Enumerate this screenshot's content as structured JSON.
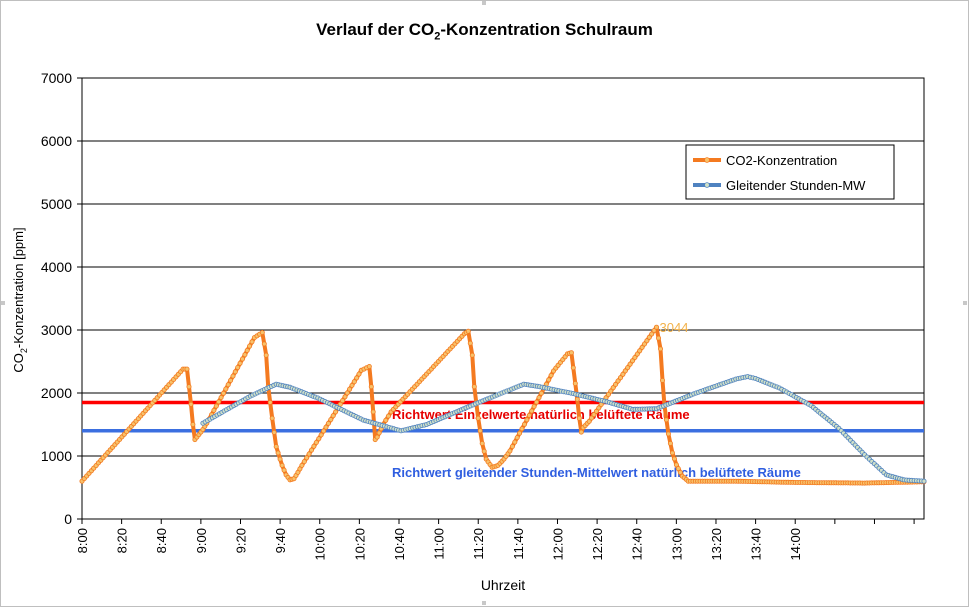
{
  "chart_data": {
    "type": "line",
    "title_parts": {
      "before": "Verlauf der CO",
      "sub": "2",
      "after": "-Konzentration Schulraum"
    },
    "ylabel_parts": {
      "before": "CO",
      "sub": "2",
      "after": "-Konzentration [ppm]"
    },
    "xlabel": "Uhrzeit",
    "ylim": [
      0,
      7000
    ],
    "yticks": [
      0,
      1000,
      2000,
      3000,
      4000,
      5000,
      6000,
      7000
    ],
    "xlim_min": [
      480,
      905
    ],
    "xtick_labels": [
      "8:00",
      "8:20",
      "8:40",
      "9:00",
      "9:20",
      "9:40",
      "10:00",
      "10:20",
      "10:40",
      "11:00",
      "11:20",
      "11:40",
      "12:00",
      "12:20",
      "12:40",
      "13:00",
      "13:20",
      "13:40",
      "14:00",
      "",
      "",
      ""
    ],
    "grid": "horizontal",
    "legend_position": "top-right",
    "series": [
      {
        "name": "CO2-Konzentration",
        "color": "#f47a20",
        "marker_color": "#f7c26b",
        "points": [
          [
            480,
            600
          ],
          [
            531,
            2380
          ],
          [
            533,
            2380
          ],
          [
            535,
            1820
          ],
          [
            536,
            1500
          ],
          [
            537,
            1260
          ],
          [
            538,
            1300
          ],
          [
            541,
            1420
          ],
          [
            543,
            1520
          ],
          [
            567,
            2880
          ],
          [
            571,
            2960
          ],
          [
            573,
            2600
          ],
          [
            574,
            2100
          ],
          [
            576,
            1600
          ],
          [
            578,
            1150
          ],
          [
            581,
            850
          ],
          [
            583,
            700
          ],
          [
            585,
            620
          ],
          [
            587,
            640
          ],
          [
            589,
            740
          ],
          [
            591,
            850
          ],
          [
            608,
            1700
          ],
          [
            621,
            2360
          ],
          [
            625,
            2420
          ],
          [
            626,
            2100
          ],
          [
            627,
            1700
          ],
          [
            628,
            1260
          ],
          [
            629,
            1300
          ],
          [
            632,
            1500
          ],
          [
            636,
            1700
          ],
          [
            673,
            2940
          ],
          [
            675,
            2980
          ],
          [
            677,
            2600
          ],
          [
            678,
            2100
          ],
          [
            680,
            1600
          ],
          [
            682,
            1200
          ],
          [
            684,
            950
          ],
          [
            687,
            820
          ],
          [
            690,
            850
          ],
          [
            693,
            950
          ],
          [
            696,
            1080
          ],
          [
            718,
            2350
          ],
          [
            725,
            2620
          ],
          [
            727,
            2640
          ],
          [
            728,
            2400
          ],
          [
            730,
            1900
          ],
          [
            731,
            1600
          ],
          [
            732,
            1380
          ],
          [
            733,
            1450
          ],
          [
            736,
            1550
          ],
          [
            770,
            3044
          ],
          [
            772,
            2700
          ],
          [
            773,
            2200
          ],
          [
            774,
            1800
          ],
          [
            776,
            1350
          ],
          [
            778,
            1050
          ],
          [
            780,
            860
          ],
          [
            783,
            680
          ],
          [
            786,
            600
          ],
          [
            810,
            600
          ],
          [
            840,
            580
          ],
          [
            875,
            570
          ],
          [
            905,
            590
          ]
        ]
      },
      {
        "name": "Gleitender Stunden-MW",
        "color": "#4f82c0",
        "marker_color": "#cfe0c8",
        "points": [
          [
            541,
            1520
          ],
          [
            565,
            1950
          ],
          [
            578,
            2140
          ],
          [
            585,
            2090
          ],
          [
            599,
            1920
          ],
          [
            622,
            1570
          ],
          [
            641,
            1400
          ],
          [
            654,
            1500
          ],
          [
            675,
            1780
          ],
          [
            692,
            2000
          ],
          [
            703,
            2140
          ],
          [
            711,
            2100
          ],
          [
            728,
            1990
          ],
          [
            745,
            1860
          ],
          [
            758,
            1740
          ],
          [
            770,
            1750
          ],
          [
            790,
            2000
          ],
          [
            810,
            2220
          ],
          [
            816,
            2260
          ],
          [
            820,
            2230
          ],
          [
            832,
            2080
          ],
          [
            848,
            1800
          ],
          [
            862,
            1440
          ],
          [
            875,
            1020
          ],
          [
            886,
            700
          ],
          [
            895,
            620
          ],
          [
            905,
            600
          ]
        ]
      }
    ],
    "reference_lines": [
      {
        "value": 1850,
        "color": "#ff0000",
        "label": "Richtwert Einzelwerte natürlich belüftete Räume",
        "label_color": "#e60000"
      },
      {
        "value": 1400,
        "color": "#3b6fe0",
        "label": "Richtwert gleitender  Stunden-Mittelwert  natürlich belüftete Räume",
        "label_color": "#2f5ee0"
      }
    ],
    "annotations": [
      {
        "text": "3044",
        "x": 770,
        "y": 3044,
        "color": "#f2b24a"
      }
    ]
  }
}
